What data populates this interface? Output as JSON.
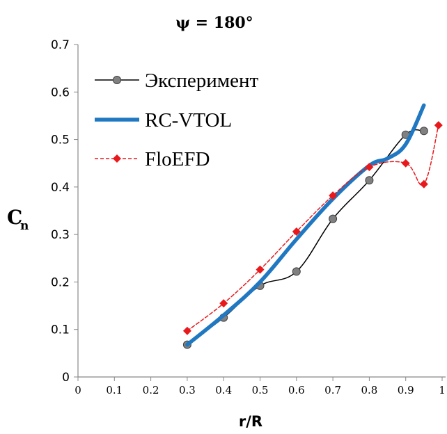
{
  "chart_data": {
    "type": "line",
    "title": "ψ = 180°",
    "xlabel": "r/R",
    "ylabel": "C",
    "ylabel_subscript": "n",
    "xlim": [
      0,
      1
    ],
    "ylim": [
      0,
      0.7
    ],
    "x_ticks": [
      "0",
      "0.1",
      "0.2",
      "0.3",
      "0.4",
      "0.5",
      "0.6",
      "0.7",
      "0.8",
      "0.9",
      "1"
    ],
    "y_ticks": [
      "0",
      "0.1",
      "0.2",
      "0.3",
      "0.4",
      "0.5",
      "0.6",
      "0.7"
    ],
    "grid": false,
    "legend_position": "top-left",
    "series": [
      {
        "name": "Эксперимент",
        "color": "#000000",
        "marker": "circle",
        "marker_color": "#808080",
        "line_style": "solid",
        "smooth": true,
        "x": [
          0.3,
          0.4,
          0.5,
          0.6,
          0.7,
          0.8,
          0.9,
          0.95
        ],
        "y": [
          0.068,
          0.125,
          0.192,
          0.222,
          0.333,
          0.414,
          0.51,
          0.518
        ]
      },
      {
        "name": "RC-VTOL",
        "color": "#1f78c1",
        "marker": "none",
        "line_style": "solid",
        "smooth": true,
        "x": [
          0.3,
          0.4,
          0.5,
          0.6,
          0.7,
          0.8,
          0.85,
          0.9,
          0.95
        ],
        "y": [
          0.068,
          0.13,
          0.2,
          0.29,
          0.375,
          0.445,
          0.46,
          0.49,
          0.572
        ]
      },
      {
        "name": "FloEFD",
        "color": "#e8191d",
        "marker": "diamond",
        "line_style": "dashed",
        "smooth": true,
        "x": [
          0.3,
          0.4,
          0.5,
          0.6,
          0.7,
          0.8,
          0.9,
          0.95,
          0.99
        ],
        "y": [
          0.097,
          0.155,
          0.226,
          0.306,
          0.382,
          0.442,
          0.45,
          0.406,
          0.53
        ]
      }
    ]
  }
}
